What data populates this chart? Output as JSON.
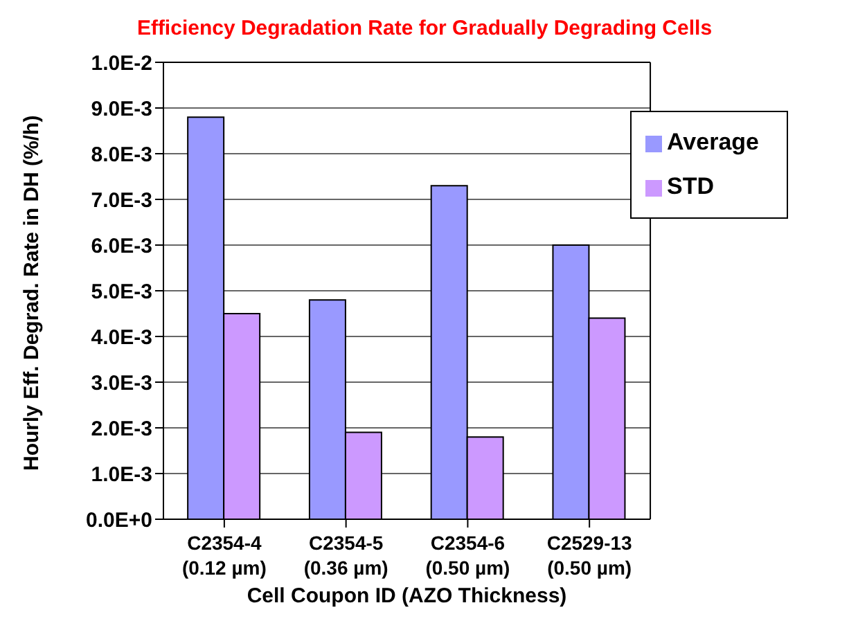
{
  "chart_data": {
    "type": "bar",
    "title": "Efficiency Degradation Rate for Gradually Degrading Cells",
    "xlabel": "Cell Coupon ID (AZO Thickness)",
    "ylabel": "Hourly Eff. Degrad. Rate in DH (%/h)",
    "categories": [
      "C2354-4\n(0.12 µm)",
      "C2354-5\n(0.36 µm)",
      "C2354-6\n(0.50 µm)",
      "C2529-13\n(0.50 µm)"
    ],
    "series": [
      {
        "name": "Average",
        "color": "#9999ff",
        "values": [
          0.0088,
          0.0048,
          0.0073,
          0.006
        ]
      },
      {
        "name": "STD",
        "color": "#cc99ff",
        "values": [
          0.0045,
          0.0019,
          0.0018,
          0.0044
        ]
      }
    ],
    "ylim": [
      0,
      0.01
    ],
    "yticks": [
      {
        "value": 0,
        "label": "0.0E+0"
      },
      {
        "value": 0.001,
        "label": "1.0E-3"
      },
      {
        "value": 0.002,
        "label": "2.0E-3"
      },
      {
        "value": 0.003,
        "label": "3.0E-3"
      },
      {
        "value": 0.004,
        "label": "4.0E-3"
      },
      {
        "value": 0.005,
        "label": "5.0E-3"
      },
      {
        "value": 0.006,
        "label": "6.0E-3"
      },
      {
        "value": 0.007,
        "label": "7.0E-3"
      },
      {
        "value": 0.008,
        "label": "8.0E-3"
      },
      {
        "value": 0.009,
        "label": "9.0E-3"
      },
      {
        "value": 0.01,
        "label": "1.0E-2"
      }
    ],
    "grid": "y",
    "legend": "top right"
  }
}
